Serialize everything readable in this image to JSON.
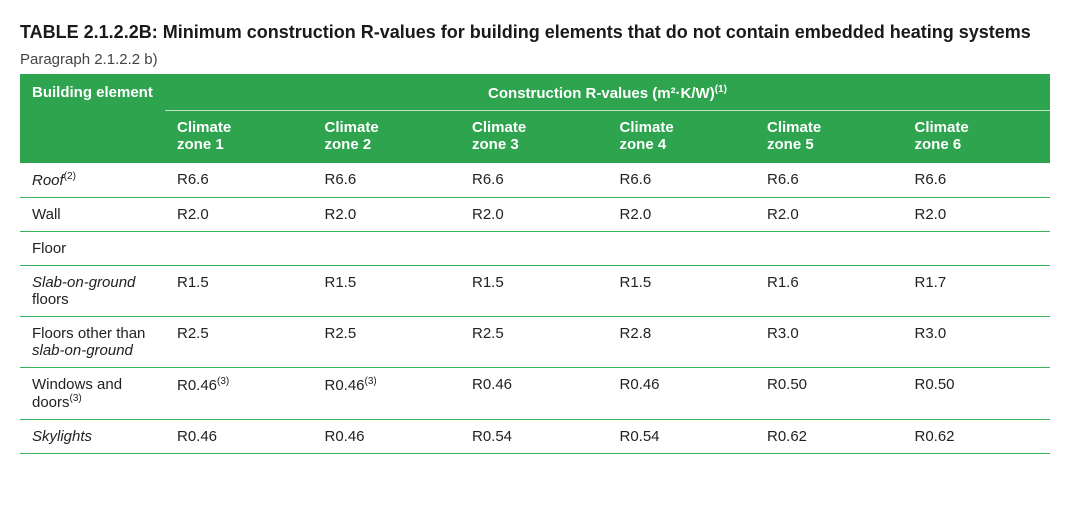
{
  "title_prefix": "TABLE 2.1.2.2B:",
  "title_text": "Minimum construction R-values for building elements that do not contain embedded heating systems",
  "paragraph_ref": "Paragraph 2.1.2.2 b)",
  "header": {
    "element_label": "Building element",
    "rvalues_label": "Construction R-values (m²·K/W)",
    "rvalues_sup": "(1)",
    "climate_prefix": "Climate zone ",
    "zones": [
      "1",
      "2",
      "3",
      "4",
      "5",
      "6"
    ]
  },
  "rows": [
    {
      "label": "Roof",
      "label_italic": true,
      "label_sup": "(2)",
      "values": [
        "R6.6",
        "R6.6",
        "R6.6",
        "R6.6",
        "R6.6",
        "R6.6"
      ]
    },
    {
      "label": "Wall",
      "values": [
        "R2.0",
        "R2.0",
        "R2.0",
        "R2.0",
        "R2.0",
        "R2.0"
      ]
    },
    {
      "label": "Floor",
      "section": true
    },
    {
      "label_parts": [
        {
          "text": "Slab-on-ground",
          "italic": true
        },
        {
          "text": " floors",
          "italic": false
        }
      ],
      "values": [
        "R1.5",
        "R1.5",
        "R1.5",
        "R1.5",
        "R1.6",
        "R1.7"
      ]
    },
    {
      "label_parts": [
        {
          "text": "Floors other than ",
          "italic": false
        },
        {
          "text": "slab-on-ground",
          "italic": true
        }
      ],
      "values": [
        "R2.5",
        "R2.5",
        "R2.5",
        "R2.8",
        "R3.0",
        "R3.0"
      ]
    },
    {
      "label": "Windows and doors",
      "label_sup": "(3)",
      "values": [
        "R0.46",
        "R0.46",
        "R0.46",
        "R0.46",
        "R0.50",
        "R0.50"
      ],
      "value_sups": [
        "(3)",
        "(3)",
        "",
        "",
        "",
        ""
      ]
    },
    {
      "label": "Skylights",
      "label_italic": true,
      "values": [
        "R0.46",
        "R0.46",
        "R0.54",
        "R0.54",
        "R0.62",
        "R0.62"
      ]
    }
  ],
  "style": {
    "header_bg": "#2ea44f",
    "header_bg_alt": "#33ad55",
    "row_border": "#35b25a",
    "text_color": "#222222",
    "title_color": "#1a1a1a"
  }
}
